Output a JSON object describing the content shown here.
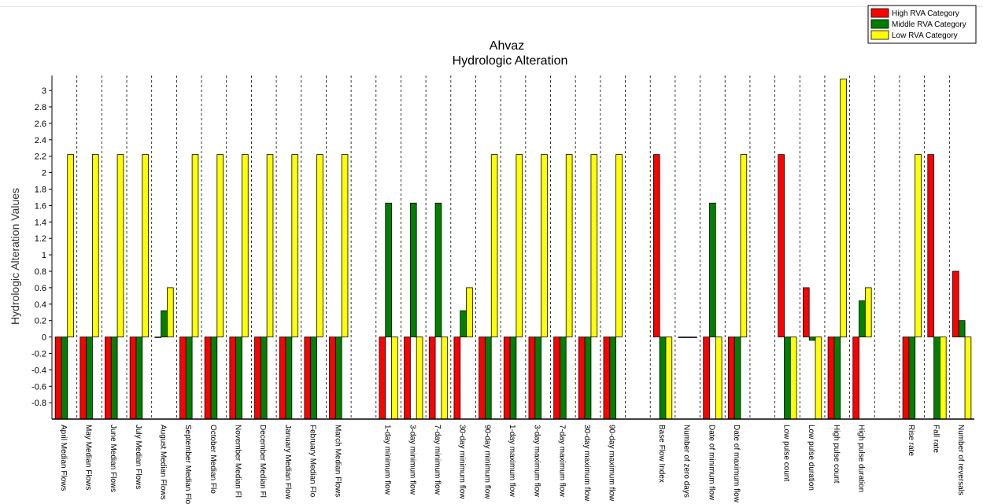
{
  "chart_data": {
    "type": "bar",
    "title": "Ahvaz",
    "subtitle": "Hydrologic Alteration",
    "ylabel": "Hydrologic Alteration Values",
    "xlabel": "",
    "ylim": [
      -1.0,
      3.2
    ],
    "yticks": [
      "3",
      "2.8",
      "2.6",
      "2.4",
      "2.2",
      "2",
      "1.8",
      "1.6",
      "1.4",
      "1.2",
      "1",
      "0.8",
      "0.6",
      "0.4",
      "0.2",
      "0",
      "-0.2",
      "-0.4",
      "-0.6",
      "-0.8"
    ],
    "grid": "vertical dashed",
    "legend_position": "top-right",
    "legend": [
      {
        "name": "High RVA Category",
        "color": "#ff0000"
      },
      {
        "name": "Middle RVA Category",
        "color": "#008000"
      },
      {
        "name": "Low RVA Category",
        "color": "#ffff00"
      }
    ],
    "categories": [
      "April Median Flows",
      "May Median Flows",
      "June Median Flows",
      "July Median Flows",
      "August Median Flows",
      "September Median Flows",
      "October Median Flows",
      "November Median Flows",
      "December Median Flows",
      "January Median Flows",
      "February Median Flows",
      "March Median Flows",
      "",
      "1-day minimum flow",
      "3-day minimum flow",
      "7-day minimum flow",
      "30-day minimum flow",
      "90-day minimum flow",
      "1-day maximum flow",
      "3-day maximum flow",
      "7-day maximum flow",
      "30-day maximum flow",
      "90-day maximum flow",
      "",
      "Base Flow Index",
      "Number of zero days",
      "Date of minimum flow",
      "Date of maximum flow",
      "",
      "Low pulse count",
      "Low pulse duration",
      "High pulse count",
      "High pulse duration",
      "",
      "Rise rate",
      "Fall rate",
      "Number of reversals"
    ],
    "category_labels_shown": [
      "April Median Flows",
      "May Median Flows",
      "June Median Flows",
      "July Median Flows",
      "August Median Flows",
      "September Median Flo",
      "October Median Flo",
      "November Median Fl",
      "December Median Fl",
      "January Median Flow",
      "February Median Flo",
      "March Median Flows",
      "",
      "1-day minimum flow",
      "3-day minimum flow",
      "7-day minimum flow",
      "30-day minimum flow",
      "90-day minimum flow",
      "1-day maximum flow",
      "3-day maximum flow",
      "7-day maximum flow",
      "30-day maximum flow",
      "90-day maximum flow",
      "",
      "Base Flow Index",
      "Number of zero days",
      "Date of minimum flow",
      "Date of maximum flow",
      "",
      "Low pulse count",
      "Low pulse duration",
      "High pulse count",
      "High pulse duration",
      "",
      "Rise rate",
      "Fall rate",
      "Number of reversals"
    ],
    "series": [
      {
        "name": "High RVA Category",
        "color": "#ff0000",
        "values": [
          -1,
          -1,
          -1,
          -1,
          0,
          -1,
          -1,
          -1,
          -1,
          -1,
          -1,
          -1,
          null,
          -1,
          -1,
          -1,
          -1,
          -1,
          -1,
          -1,
          -1,
          -1,
          -1,
          null,
          2.22,
          0,
          -1,
          -1,
          null,
          2.22,
          0.6,
          -1,
          -1,
          null,
          -1,
          2.22,
          0.8
        ]
      },
      {
        "name": "Middle RVA Category",
        "color": "#008000",
        "values": [
          -1,
          -1,
          -1,
          -1,
          0.32,
          -1,
          -1,
          -1,
          -1,
          -1,
          -1,
          -1,
          null,
          1.63,
          1.63,
          1.63,
          0.32,
          -1,
          -1,
          -1,
          -1,
          -1,
          -1,
          null,
          -1,
          0,
          1.63,
          -1,
          null,
          -1,
          -0.04,
          -1,
          0.44,
          null,
          -1,
          -1,
          0.2
        ]
      },
      {
        "name": "Low RVA Category",
        "color": "#ffff00",
        "values": [
          2.22,
          2.22,
          2.22,
          2.22,
          0.6,
          2.22,
          2.22,
          2.22,
          2.22,
          2.22,
          2.22,
          2.22,
          null,
          -1,
          -1,
          -1,
          0.6,
          2.22,
          2.22,
          2.22,
          2.22,
          2.22,
          2.22,
          null,
          -1,
          0,
          -1,
          2.22,
          null,
          -1,
          -1,
          3.14,
          0.6,
          null,
          2.22,
          -1,
          -1
        ]
      }
    ]
  }
}
